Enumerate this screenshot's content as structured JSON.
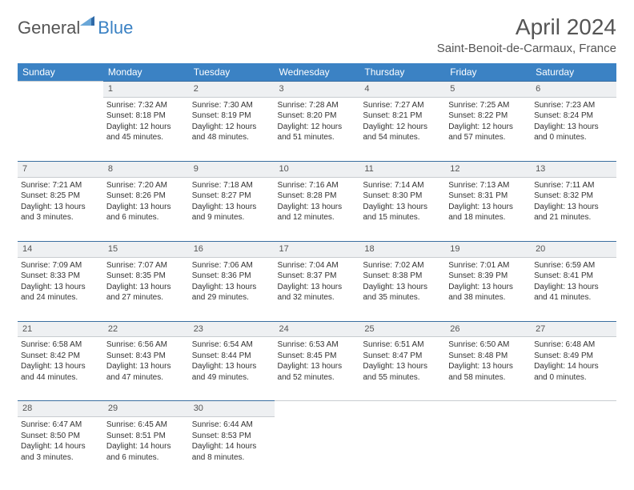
{
  "brand": {
    "part1": "General",
    "part2": "Blue"
  },
  "title": "April 2024",
  "location": "Saint-Benoit-de-Carmaux, France",
  "colors": {
    "header_bg": "#3b82c4",
    "daynum_bg": "#eef0f2",
    "daynum_border_top": "#3b6fa0",
    "text": "#333333",
    "title_color": "#555555"
  },
  "day_headers": [
    "Sunday",
    "Monday",
    "Tuesday",
    "Wednesday",
    "Thursday",
    "Friday",
    "Saturday"
  ],
  "weeks": [
    {
      "nums": [
        "",
        "1",
        "2",
        "3",
        "4",
        "5",
        "6"
      ],
      "cells": [
        null,
        {
          "sunrise": "Sunrise: 7:32 AM",
          "sunset": "Sunset: 8:18 PM",
          "d1": "Daylight: 12 hours",
          "d2": "and 45 minutes."
        },
        {
          "sunrise": "Sunrise: 7:30 AM",
          "sunset": "Sunset: 8:19 PM",
          "d1": "Daylight: 12 hours",
          "d2": "and 48 minutes."
        },
        {
          "sunrise": "Sunrise: 7:28 AM",
          "sunset": "Sunset: 8:20 PM",
          "d1": "Daylight: 12 hours",
          "d2": "and 51 minutes."
        },
        {
          "sunrise": "Sunrise: 7:27 AM",
          "sunset": "Sunset: 8:21 PM",
          "d1": "Daylight: 12 hours",
          "d2": "and 54 minutes."
        },
        {
          "sunrise": "Sunrise: 7:25 AM",
          "sunset": "Sunset: 8:22 PM",
          "d1": "Daylight: 12 hours",
          "d2": "and 57 minutes."
        },
        {
          "sunrise": "Sunrise: 7:23 AM",
          "sunset": "Sunset: 8:24 PM",
          "d1": "Daylight: 13 hours",
          "d2": "and 0 minutes."
        }
      ]
    },
    {
      "nums": [
        "7",
        "8",
        "9",
        "10",
        "11",
        "12",
        "13"
      ],
      "cells": [
        {
          "sunrise": "Sunrise: 7:21 AM",
          "sunset": "Sunset: 8:25 PM",
          "d1": "Daylight: 13 hours",
          "d2": "and 3 minutes."
        },
        {
          "sunrise": "Sunrise: 7:20 AM",
          "sunset": "Sunset: 8:26 PM",
          "d1": "Daylight: 13 hours",
          "d2": "and 6 minutes."
        },
        {
          "sunrise": "Sunrise: 7:18 AM",
          "sunset": "Sunset: 8:27 PM",
          "d1": "Daylight: 13 hours",
          "d2": "and 9 minutes."
        },
        {
          "sunrise": "Sunrise: 7:16 AM",
          "sunset": "Sunset: 8:28 PM",
          "d1": "Daylight: 13 hours",
          "d2": "and 12 minutes."
        },
        {
          "sunrise": "Sunrise: 7:14 AM",
          "sunset": "Sunset: 8:30 PM",
          "d1": "Daylight: 13 hours",
          "d2": "and 15 minutes."
        },
        {
          "sunrise": "Sunrise: 7:13 AM",
          "sunset": "Sunset: 8:31 PM",
          "d1": "Daylight: 13 hours",
          "d2": "and 18 minutes."
        },
        {
          "sunrise": "Sunrise: 7:11 AM",
          "sunset": "Sunset: 8:32 PM",
          "d1": "Daylight: 13 hours",
          "d2": "and 21 minutes."
        }
      ]
    },
    {
      "nums": [
        "14",
        "15",
        "16",
        "17",
        "18",
        "19",
        "20"
      ],
      "cells": [
        {
          "sunrise": "Sunrise: 7:09 AM",
          "sunset": "Sunset: 8:33 PM",
          "d1": "Daylight: 13 hours",
          "d2": "and 24 minutes."
        },
        {
          "sunrise": "Sunrise: 7:07 AM",
          "sunset": "Sunset: 8:35 PM",
          "d1": "Daylight: 13 hours",
          "d2": "and 27 minutes."
        },
        {
          "sunrise": "Sunrise: 7:06 AM",
          "sunset": "Sunset: 8:36 PM",
          "d1": "Daylight: 13 hours",
          "d2": "and 29 minutes."
        },
        {
          "sunrise": "Sunrise: 7:04 AM",
          "sunset": "Sunset: 8:37 PM",
          "d1": "Daylight: 13 hours",
          "d2": "and 32 minutes."
        },
        {
          "sunrise": "Sunrise: 7:02 AM",
          "sunset": "Sunset: 8:38 PM",
          "d1": "Daylight: 13 hours",
          "d2": "and 35 minutes."
        },
        {
          "sunrise": "Sunrise: 7:01 AM",
          "sunset": "Sunset: 8:39 PM",
          "d1": "Daylight: 13 hours",
          "d2": "and 38 minutes."
        },
        {
          "sunrise": "Sunrise: 6:59 AM",
          "sunset": "Sunset: 8:41 PM",
          "d1": "Daylight: 13 hours",
          "d2": "and 41 minutes."
        }
      ]
    },
    {
      "nums": [
        "21",
        "22",
        "23",
        "24",
        "25",
        "26",
        "27"
      ],
      "cells": [
        {
          "sunrise": "Sunrise: 6:58 AM",
          "sunset": "Sunset: 8:42 PM",
          "d1": "Daylight: 13 hours",
          "d2": "and 44 minutes."
        },
        {
          "sunrise": "Sunrise: 6:56 AM",
          "sunset": "Sunset: 8:43 PM",
          "d1": "Daylight: 13 hours",
          "d2": "and 47 minutes."
        },
        {
          "sunrise": "Sunrise: 6:54 AM",
          "sunset": "Sunset: 8:44 PM",
          "d1": "Daylight: 13 hours",
          "d2": "and 49 minutes."
        },
        {
          "sunrise": "Sunrise: 6:53 AM",
          "sunset": "Sunset: 8:45 PM",
          "d1": "Daylight: 13 hours",
          "d2": "and 52 minutes."
        },
        {
          "sunrise": "Sunrise: 6:51 AM",
          "sunset": "Sunset: 8:47 PM",
          "d1": "Daylight: 13 hours",
          "d2": "and 55 minutes."
        },
        {
          "sunrise": "Sunrise: 6:50 AM",
          "sunset": "Sunset: 8:48 PM",
          "d1": "Daylight: 13 hours",
          "d2": "and 58 minutes."
        },
        {
          "sunrise": "Sunrise: 6:48 AM",
          "sunset": "Sunset: 8:49 PM",
          "d1": "Daylight: 14 hours",
          "d2": "and 0 minutes."
        }
      ]
    },
    {
      "nums": [
        "28",
        "29",
        "30",
        "",
        "",
        "",
        ""
      ],
      "cells": [
        {
          "sunrise": "Sunrise: 6:47 AM",
          "sunset": "Sunset: 8:50 PM",
          "d1": "Daylight: 14 hours",
          "d2": "and 3 minutes."
        },
        {
          "sunrise": "Sunrise: 6:45 AM",
          "sunset": "Sunset: 8:51 PM",
          "d1": "Daylight: 14 hours",
          "d2": "and 6 minutes."
        },
        {
          "sunrise": "Sunrise: 6:44 AM",
          "sunset": "Sunset: 8:53 PM",
          "d1": "Daylight: 14 hours",
          "d2": "and 8 minutes."
        },
        null,
        null,
        null,
        null
      ]
    }
  ]
}
